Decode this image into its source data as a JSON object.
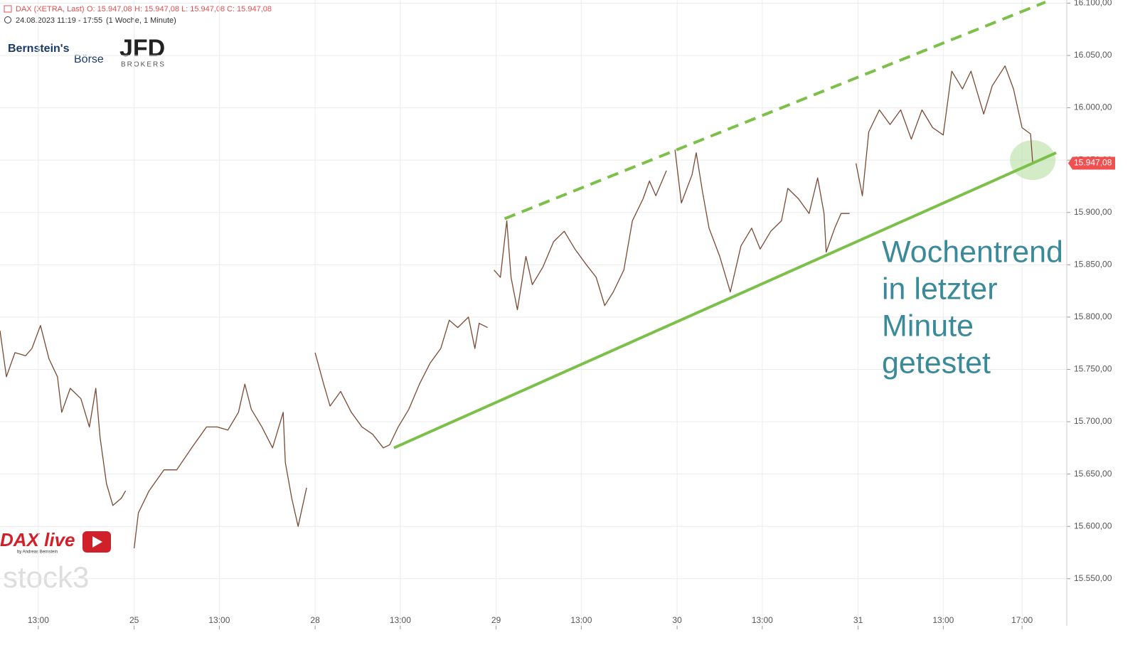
{
  "header": {
    "title": "DAX (XETRA, Last)",
    "ohlc": [
      "O: 15.947,08",
      "H: 15.947,08",
      "L: 15.947,08",
      "C: 15.947,08"
    ],
    "range": "24.08.2023 11:19 - 17:55",
    "period": "(1 Woche, 1 Minute)"
  },
  "logos": {
    "bernstein": "Bernstein's",
    "boerse": "Börse",
    "jfd": "JFD",
    "brokers": "BROKERS",
    "dax_live": "DAX live",
    "dax_live_by": "by Andreas Bernstein",
    "stock3": "stock3"
  },
  "chart_data": {
    "type": "line",
    "xlim": [
      2.2,
      52.3
    ],
    "ylim": [
      15505,
      16103
    ],
    "xticks": [
      {
        "value": 4,
        "label": "13:00"
      },
      {
        "value": 8.5,
        "label": "25"
      },
      {
        "value": 12.5,
        "label": "13:00"
      },
      {
        "value": 17,
        "label": "28"
      },
      {
        "value": 21,
        "label": "13:00"
      },
      {
        "value": 25.5,
        "label": "29"
      },
      {
        "value": 29.5,
        "label": "13:00"
      },
      {
        "value": 34,
        "label": "30"
      },
      {
        "value": 38,
        "label": "13:00"
      },
      {
        "value": 42.5,
        "label": "31"
      },
      {
        "value": 46.5,
        "label": "13:00"
      },
      {
        "value": 50.2,
        "label": "17:00"
      }
    ],
    "yticks": [
      {
        "value": 15550,
        "label": "15.550,00"
      },
      {
        "value": 15600,
        "label": "15.600,00"
      },
      {
        "value": 15650,
        "label": "15.650,00"
      },
      {
        "value": 15700,
        "label": "15.700,00"
      },
      {
        "value": 15750,
        "label": "15.750,00"
      },
      {
        "value": 15800,
        "label": "15.800,00"
      },
      {
        "value": 15850,
        "label": "15.850,00"
      },
      {
        "value": 15900,
        "label": "15.900,00"
      },
      {
        "value": 15950,
        "label": "15.950,00"
      },
      {
        "value": 16000,
        "label": "16.000,00"
      },
      {
        "value": 16050,
        "label": "16.050,00"
      },
      {
        "value": 16100,
        "label": "16.100,00"
      }
    ],
    "grid": true,
    "series": [
      {
        "name": "DAX",
        "color": "#7a4a34",
        "x": [
          2.2,
          2.5,
          2.9,
          3.4,
          3.7,
          4.1,
          4.5,
          4.9,
          5.1,
          5.5,
          6.0,
          6.4,
          6.7,
          6.9,
          7.2,
          7.5,
          7.9,
          8.1,
          null,
          8.5,
          8.7,
          9.2,
          9.9,
          10.5,
          11.2,
          11.9,
          12.4,
          12.9,
          13.4,
          13.7,
          14.0,
          14.5,
          15.0,
          15.5,
          15.6,
          15.9,
          16.2,
          16.6,
          null,
          17.0,
          17.4,
          17.7,
          18.2,
          18.7,
          19.2,
          19.7,
          20.2,
          20.5,
          20.9,
          21.4,
          21.9,
          22.4,
          22.9,
          23.3,
          23.7,
          24.2,
          24.5,
          24.7,
          25.1,
          null,
          25.4,
          25.7,
          26.0,
          26.2,
          26.5,
          26.9,
          27.2,
          27.7,
          28.2,
          28.7,
          29.2,
          29.7,
          30.2,
          30.6,
          31.0,
          31.5,
          31.9,
          32.4,
          32.7,
          33.0,
          33.5,
          null,
          33.9,
          34.2,
          34.7,
          34.9,
          35.2,
          35.5,
          36.0,
          36.5,
          37.0,
          37.5,
          37.9,
          38.4,
          38.9,
          39.2,
          39.7,
          40.2,
          40.6,
          40.9,
          41.0,
          41.4,
          41.7,
          42.1,
          null,
          42.4,
          42.7,
          43.0,
          43.5,
          44.0,
          44.5,
          45.0,
          45.5,
          46.0,
          46.5,
          46.9,
          47.4,
          47.8,
          48.4,
          48.8,
          49.4,
          49.8,
          50.2,
          50.6,
          50.7
        ],
        "values": [
          15787,
          15743,
          15766,
          15763,
          15770,
          15792,
          15760,
          15743,
          15709,
          15732,
          15722,
          15695,
          15732,
          15685,
          15641,
          15620,
          15627,
          15634,
          null,
          15579,
          15613,
          15634,
          15654,
          15654,
          15675,
          15695,
          15695,
          15692,
          15709,
          15736,
          15712,
          15695,
          15675,
          15709,
          15661,
          15627,
          15600,
          15637,
          null,
          15766,
          15736,
          15715,
          15729,
          15709,
          15695,
          15688,
          15675,
          15678,
          15695,
          15712,
          15736,
          15756,
          15770,
          15797,
          15790,
          15800,
          15770,
          15794,
          15790,
          null,
          15845,
          15838,
          15892,
          15838,
          15807,
          15858,
          15831,
          15848,
          15872,
          15882,
          15865,
          15851,
          15838,
          15811,
          15824,
          15845,
          15892,
          15913,
          15930,
          15916,
          15940,
          null,
          15960,
          15909,
          15936,
          15957,
          15919,
          15885,
          15858,
          15824,
          15868,
          15885,
          15865,
          15882,
          15892,
          15923,
          15913,
          15899,
          15933,
          15899,
          15862,
          15885,
          15899,
          15899,
          null,
          15947,
          15916,
          15977,
          15998,
          15984,
          15998,
          15970,
          15998,
          15981,
          15974,
          16035,
          16018,
          16035,
          15994,
          16021,
          16040,
          16018,
          15981,
          15975,
          15947.08
        ]
      }
    ],
    "last_price": {
      "value": 15947.08,
      "label": "15.947,08",
      "color": "#f05050"
    },
    "trendlines": [
      {
        "x": [
          20.7,
          51.8
        ],
        "values": [
          15675,
          15957
        ],
        "color": "#7cc04a",
        "style": "solid"
      },
      {
        "x": [
          25.9,
          51.3
        ],
        "values": [
          15894,
          16101
        ],
        "color": "#7cc04a",
        "style": "dashed"
      }
    ],
    "highlight": {
      "x": 50.7,
      "value": 15950,
      "color": "#a8d890"
    },
    "annotation": [
      "Wochentrend",
      "in letzter",
      "Minute",
      "getestet"
    ]
  }
}
